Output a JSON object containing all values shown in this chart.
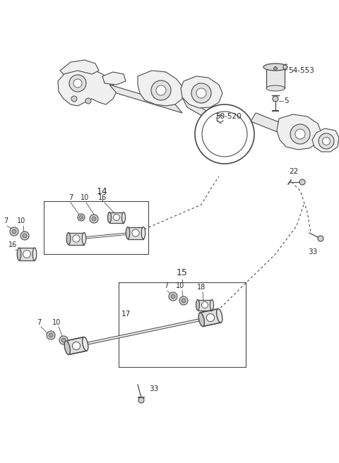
{
  "bg_color": "#ffffff",
  "line_color": "#4a4a4a",
  "label_color": "#2a2a2a",
  "figsize": [
    4.8,
    6.56
  ],
  "dpi": 100,
  "parts": {
    "54_553_label": "54-553",
    "50_520_label": "50-520",
    "label_5": "5",
    "label_14": "14",
    "label_15": "15",
    "label_17": "17",
    "label_22": "22",
    "label_33": "33",
    "label_7": "7",
    "label_10": "10",
    "label_16": "16",
    "label_18": "18"
  }
}
